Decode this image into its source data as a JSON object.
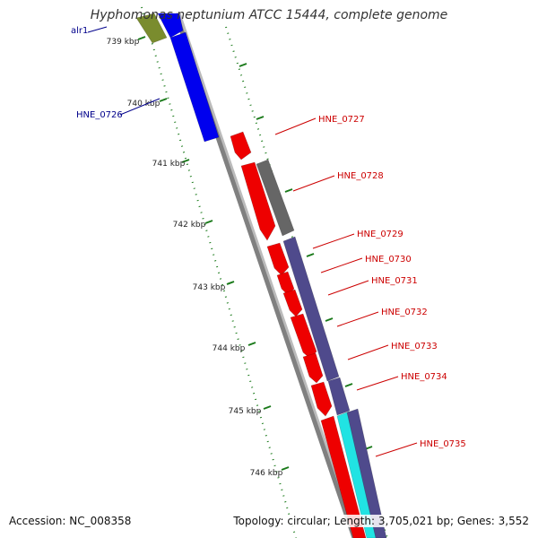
{
  "title": "Hyphomonas neptunium ATCC 15444, complete genome",
  "accession": "Accession: NC_008358",
  "topology": "Topology: circular; Length: 3,705,021 bp; Genes: 3,552",
  "ticks": [
    "739 kbp",
    "740 kbp",
    "741 kbp",
    "742 kbp",
    "743 kbp",
    "744 kbp",
    "745 kbp",
    "746 kbp"
  ],
  "genes": {
    "left": [
      "alr1",
      "HNE_0726"
    ],
    "right": [
      "HNE_0727",
      "HNE_0728",
      "HNE_0729",
      "HNE_0730",
      "HNE_0731",
      "HNE_0732",
      "HNE_0733",
      "HNE_0734",
      "HNE_0735"
    ]
  },
  "colors": {
    "blue": "#0000ee",
    "red": "#ee0000",
    "dark_grey": "#666666",
    "purple": "#4f4a8c",
    "olive": "#7a8c2e",
    "cyan": "#21e3e3",
    "tick_green": "#1a7a1a",
    "backbone": "#888888",
    "left_label": "#00008b",
    "right_label": "#cc0000"
  }
}
